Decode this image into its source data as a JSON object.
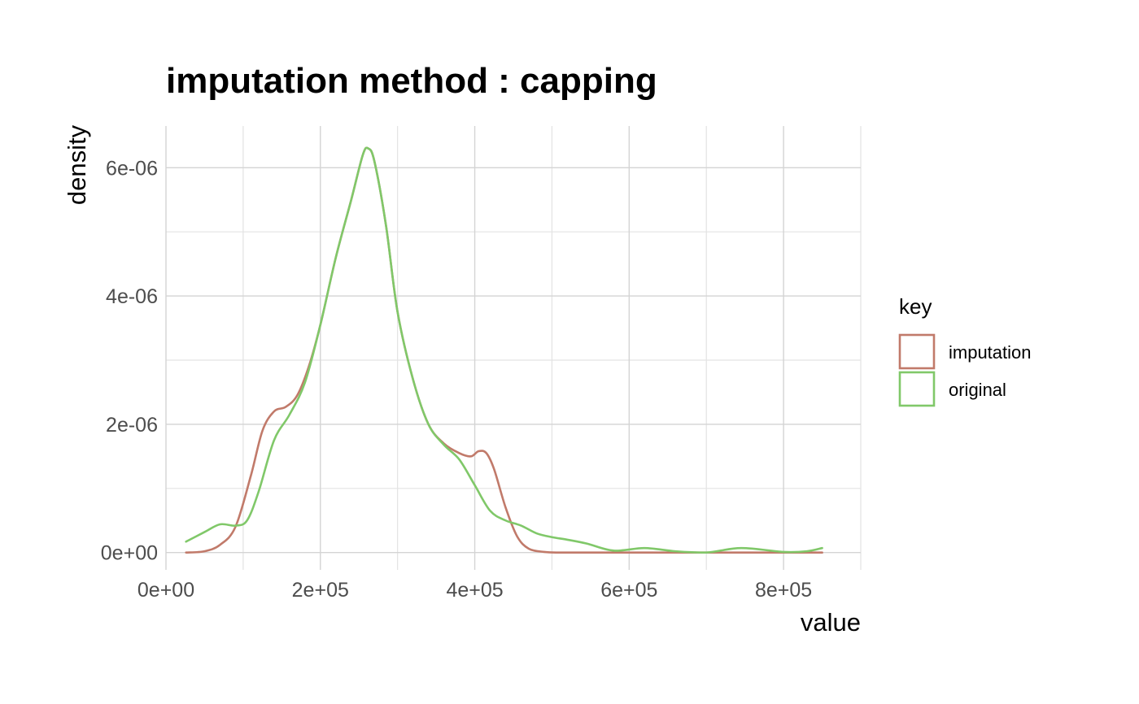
{
  "chart_data": {
    "type": "line",
    "title": "imputation method : capping",
    "xlabel": "value",
    "ylabel": "density",
    "xlim": [
      0,
      900000
    ],
    "ylim": [
      -2.7e-07,
      6.65e-06
    ],
    "x_ticks": [
      {
        "value": 0,
        "label": "0e+00"
      },
      {
        "value": 200000,
        "label": "2e+05"
      },
      {
        "value": 400000,
        "label": "4e+05"
      },
      {
        "value": 600000,
        "label": "6e+05"
      },
      {
        "value": 800000,
        "label": "8e+05"
      }
    ],
    "y_ticks": [
      {
        "value": 0,
        "label": "0e+00"
      },
      {
        "value": 2e-06,
        "label": "2e-06"
      },
      {
        "value": 4e-06,
        "label": "4e-06"
      },
      {
        "value": 6e-06,
        "label": "6e-06"
      }
    ],
    "grid": true,
    "legend": {
      "title": "key",
      "position": "right"
    },
    "series": [
      {
        "name": "imputation",
        "color": "#c17a6a",
        "x": [
          26000,
          50000,
          70000,
          90000,
          110000,
          125000,
          140000,
          155000,
          170000,
          185000,
          200000,
          220000,
          240000,
          255000,
          262000,
          270000,
          285000,
          300000,
          320000,
          340000,
          360000,
          380000,
          395000,
          405000,
          415000,
          425000,
          440000,
          455000,
          470000,
          490000,
          510000,
          550000,
          600000,
          650000,
          700000,
          750000,
          800000,
          850000
        ],
        "values": [
          0,
          2e-08,
          1.2e-07,
          4e-07,
          1.2e-06,
          1.9e-06,
          2.2e-06,
          2.27e-06,
          2.45e-06,
          2.9e-06,
          3.55e-06,
          4.6e-06,
          5.5e-06,
          6.2e-06,
          6.3e-06,
          6.1e-06,
          5.1e-06,
          3.75e-06,
          2.7e-06,
          2e-06,
          1.7e-06,
          1.55e-06,
          1.5e-06,
          1.58e-06,
          1.55e-06,
          1.3e-06,
          7e-07,
          2.5e-07,
          6e-08,
          1e-08,
          0,
          0,
          0,
          0,
          0,
          0,
          0,
          0
        ]
      },
      {
        "name": "original",
        "color": "#80c869",
        "x": [
          26000,
          50000,
          70000,
          90000,
          105000,
          120000,
          140000,
          160000,
          180000,
          200000,
          220000,
          240000,
          255000,
          262000,
          270000,
          285000,
          300000,
          320000,
          340000,
          360000,
          380000,
          400000,
          420000,
          440000,
          460000,
          480000,
          500000,
          520000,
          545000,
          580000,
          620000,
          660000,
          700000,
          745000,
          800000,
          830000,
          850000
        ],
        "values": [
          1.7e-07,
          3.2e-07,
          4.4e-07,
          4.2e-07,
          5e-07,
          9.5e-07,
          1.75e-06,
          2.15e-06,
          2.65e-06,
          3.55e-06,
          4.6e-06,
          5.5e-06,
          6.2e-06,
          6.3e-06,
          6.1e-06,
          5.1e-06,
          3.75e-06,
          2.7e-06,
          2e-06,
          1.68e-06,
          1.45e-06,
          1.05e-06,
          6.5e-07,
          5e-07,
          4.2e-07,
          3e-07,
          2.4e-07,
          2e-07,
          1.4e-07,
          3e-08,
          7e-08,
          2e-08,
          0,
          7e-08,
          1e-08,
          2e-08,
          7e-08
        ]
      }
    ]
  }
}
